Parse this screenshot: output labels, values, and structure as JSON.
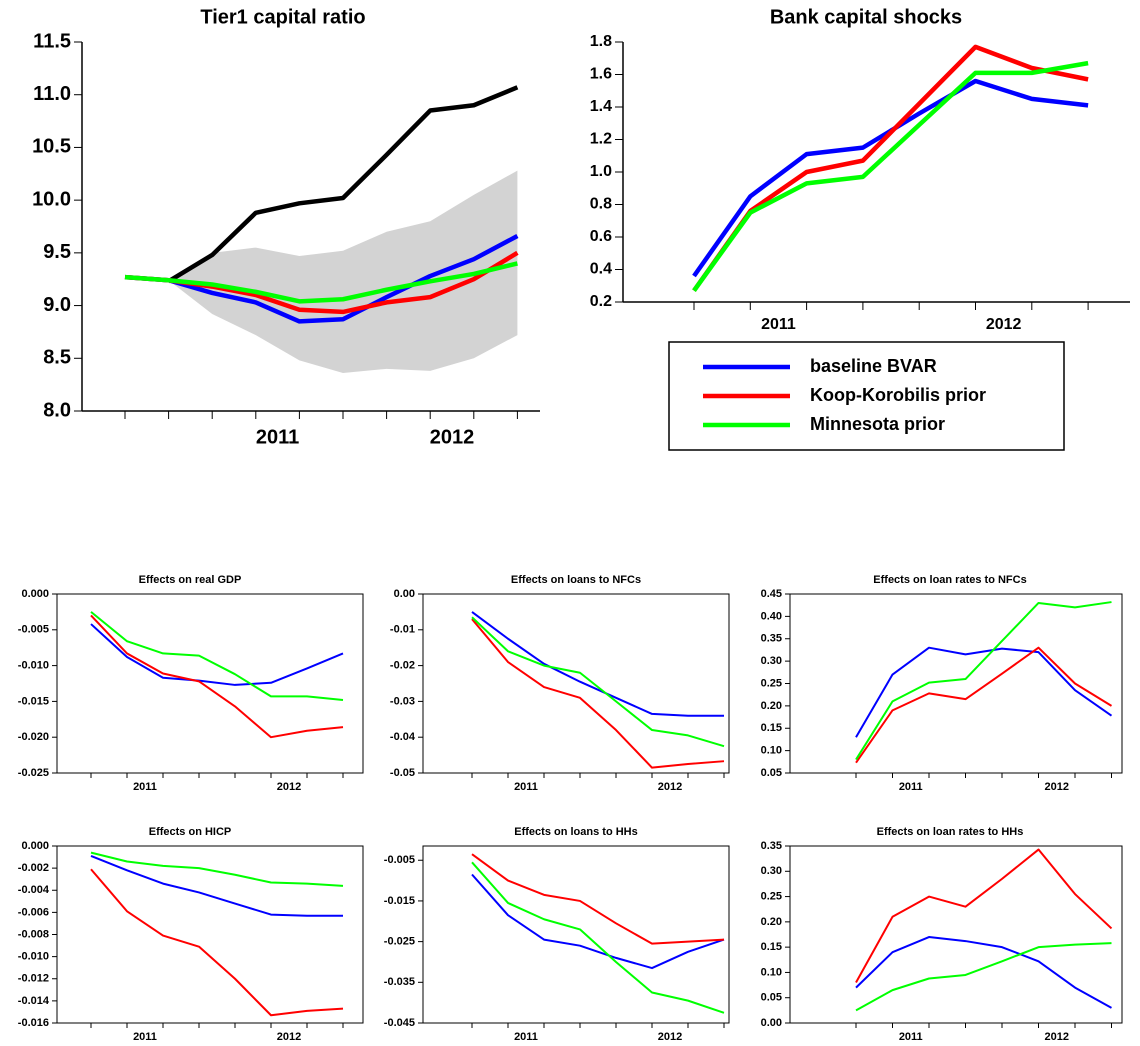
{
  "chart_data": [
    {
      "type": "line",
      "title": "Tier1 capital ratio",
      "categories": [
        null,
        null,
        null,
        "2011",
        null,
        null,
        null,
        "2012",
        null,
        null
      ],
      "band": {
        "color": "#d3d3d3",
        "upper": [
          null,
          9.25,
          9.5,
          9.55,
          9.47,
          9.52,
          9.7,
          9.8,
          10.05,
          10.28
        ],
        "lower": [
          null,
          9.24,
          8.92,
          8.72,
          8.48,
          8.36,
          8.4,
          8.38,
          8.5,
          8.72
        ]
      },
      "series": [
        {
          "color": "#000000",
          "values": [
            null,
            9.23,
            9.48,
            9.88,
            9.97,
            10.02,
            10.43,
            10.85,
            10.9,
            11.07
          ]
        },
        {
          "color": "#0000ff",
          "values": [
            9.27,
            9.24,
            9.12,
            9.03,
            8.85,
            8.87,
            9.08,
            9.28,
            9.44,
            9.66
          ]
        },
        {
          "color": "#ff0000",
          "values": [
            9.27,
            9.24,
            9.18,
            9.1,
            8.96,
            8.94,
            9.03,
            9.08,
            9.25,
            9.5
          ]
        },
        {
          "color": "#00ff00",
          "values": [
            9.27,
            9.24,
            9.2,
            9.13,
            9.04,
            9.06,
            9.15,
            9.23,
            9.3,
            9.4
          ]
        }
      ],
      "ylim": [
        8,
        11.5
      ],
      "yticks": [
        {
          "value": 8,
          "label": "8.0"
        },
        8.5,
        {
          "value": 9,
          "label": "9.0"
        },
        9.5,
        {
          "value": 10,
          "label": "10.0"
        },
        10.5,
        {
          "value": 11,
          "label": "11.0"
        },
        11.5
      ]
    },
    {
      "type": "line",
      "title": "Bank capital shocks",
      "categories": [
        null,
        "2011",
        null,
        null,
        null,
        "2012",
        null,
        null
      ],
      "series": [
        {
          "name": "baseline BVAR",
          "color": "#0000ff",
          "values": [
            0.36,
            0.85,
            1.11,
            1.15,
            1.36,
            1.56,
            1.45,
            1.41
          ]
        },
        {
          "name": "Koop-Korobilis prior",
          "color": "#ff0000",
          "values": [
            0.27,
            0.76,
            1.0,
            1.07,
            1.42,
            1.77,
            1.64,
            1.57
          ]
        },
        {
          "name": "Minnesota prior",
          "color": "#00ff00",
          "values": [
            0.27,
            0.75,
            0.93,
            0.97,
            1.29,
            1.61,
            1.61,
            1.67
          ]
        }
      ],
      "ylim": [
        0.2,
        1.8
      ],
      "yticks": [
        0.2,
        0.4,
        0.6,
        0.8,
        {
          "value": 1,
          "label": "1.0"
        },
        1.2,
        1.4,
        1.6,
        1.8
      ],
      "legend": "below"
    },
    {
      "type": "line",
      "title": "Effects on real GDP",
      "categories": [
        null,
        "2011",
        null,
        null,
        null,
        "2012",
        null,
        null
      ],
      "series": [
        {
          "color": "#0000ff",
          "values": [
            -0.0042,
            -0.0088,
            -0.0117,
            -0.0121,
            -0.0127,
            -0.0124,
            -0.0104,
            -0.0083
          ]
        },
        {
          "color": "#ff0000",
          "values": [
            -0.003,
            -0.0083,
            -0.0111,
            -0.0122,
            -0.0157,
            -0.02,
            -0.0191,
            -0.0186
          ]
        },
        {
          "color": "#00ff00",
          "values": [
            -0.0025,
            -0.0066,
            -0.0083,
            -0.0086,
            -0.0112,
            -0.0143,
            -0.0143,
            -0.0148
          ]
        }
      ],
      "ylim": [
        -0.025,
        0
      ],
      "yticks": [
        {
          "value": 0,
          "label": "0.000"
        },
        -0.005,
        {
          "value": -0.01,
          "label": "-0.010"
        },
        -0.015,
        {
          "value": -0.02,
          "label": "-0.020"
        },
        -0.025
      ]
    },
    {
      "type": "line",
      "title": "Effects on loans to NFCs",
      "categories": [
        null,
        "2011",
        null,
        null,
        null,
        "2012",
        null,
        null
      ],
      "series": [
        {
          "color": "#0000ff",
          "values": [
            -0.005,
            -0.0125,
            -0.0195,
            -0.0245,
            -0.029,
            -0.0335,
            -0.034,
            -0.034
          ]
        },
        {
          "color": "#ff0000",
          "values": [
            -0.007,
            -0.019,
            -0.026,
            -0.029,
            -0.038,
            -0.0485,
            -0.0475,
            -0.0467
          ]
        },
        {
          "color": "#00ff00",
          "values": [
            -0.0065,
            -0.016,
            -0.02,
            -0.022,
            -0.03,
            -0.038,
            -0.0395,
            -0.0425
          ]
        }
      ],
      "ylim": [
        -0.05,
        0
      ],
      "yticks": [
        {
          "value": 0,
          "label": "0.00"
        },
        -0.01,
        -0.02,
        -0.03,
        -0.04,
        -0.05
      ]
    },
    {
      "type": "line",
      "title": "Effects on loan rates to NFCs",
      "categories": [
        null,
        "2011",
        null,
        null,
        null,
        "2012",
        null,
        null
      ],
      "series": [
        {
          "color": "#0000ff",
          "values": [
            0.13,
            0.27,
            0.33,
            0.315,
            0.328,
            0.32,
            0.235,
            0.178
          ]
        },
        {
          "color": "#ff0000",
          "values": [
            0.073,
            0.19,
            0.228,
            0.215,
            0.272,
            0.33,
            0.25,
            0.2
          ]
        },
        {
          "color": "#00ff00",
          "values": [
            0.08,
            0.21,
            0.252,
            0.26,
            0.345,
            0.43,
            0.42,
            0.432
          ]
        }
      ],
      "ylim": [
        0.05,
        0.45
      ],
      "yticks": [
        0.05,
        {
          "value": 0.1,
          "label": "0.10"
        },
        0.15,
        {
          "value": 0.2,
          "label": "0.20"
        },
        0.25,
        {
          "value": 0.3,
          "label": "0.30"
        },
        0.35,
        {
          "value": 0.4,
          "label": "0.40"
        },
        0.45
      ]
    },
    {
      "type": "line",
      "title": "Effects on HICP",
      "categories": [
        null,
        "2011",
        null,
        null,
        null,
        "2012",
        null,
        null
      ],
      "series": [
        {
          "color": "#0000ff",
          "values": [
            -0.0009,
            -0.0022,
            -0.0034,
            -0.0042,
            -0.0052,
            -0.0062,
            -0.0063,
            -0.0063
          ]
        },
        {
          "color": "#ff0000",
          "values": [
            -0.0021,
            -0.0059,
            -0.0081,
            -0.0091,
            -0.012,
            -0.0153,
            -0.0149,
            -0.0147
          ]
        },
        {
          "color": "#00ff00",
          "values": [
            -0.0006,
            -0.0014,
            -0.0018,
            -0.002,
            -0.0026,
            -0.0033,
            -0.0034,
            -0.0036
          ]
        }
      ],
      "ylim": [
        -0.016,
        0
      ],
      "yticks": [
        {
          "value": 0,
          "label": "0.000"
        },
        -0.002,
        -0.004,
        -0.006,
        -0.008,
        {
          "value": -0.01,
          "label": "-0.010"
        },
        -0.012,
        -0.014,
        -0.016
      ]
    },
    {
      "type": "line",
      "title": "Effects on loans to HHs",
      "categories": [
        null,
        "2011",
        null,
        null,
        null,
        "2012",
        null,
        null
      ],
      "series": [
        {
          "color": "#0000ff",
          "values": [
            -0.0085,
            -0.0185,
            -0.0245,
            -0.026,
            -0.029,
            -0.0315,
            -0.0275,
            -0.0245
          ]
        },
        {
          "color": "#ff0000",
          "values": [
            -0.0035,
            -0.01,
            -0.0135,
            -0.015,
            -0.0205,
            -0.0255,
            -0.025,
            -0.0245
          ]
        },
        {
          "color": "#00ff00",
          "values": [
            -0.0055,
            -0.0155,
            -0.0195,
            -0.022,
            -0.03,
            -0.0375,
            -0.0395,
            -0.0425
          ]
        }
      ],
      "ylim": [
        -0.045,
        -0.0015
      ],
      "yticks": [
        -0.005,
        -0.015,
        -0.025,
        -0.035,
        -0.045
      ]
    },
    {
      "type": "line",
      "title": "Effects on loan rates to HHs",
      "categories": [
        null,
        "2011",
        null,
        null,
        null,
        "2012",
        null,
        null
      ],
      "series": [
        {
          "color": "#0000ff",
          "values": [
            0.07,
            0.14,
            0.17,
            0.162,
            0.15,
            0.122,
            0.07,
            0.03
          ]
        },
        {
          "color": "#ff0000",
          "values": [
            0.08,
            0.21,
            0.25,
            0.23,
            0.285,
            0.343,
            0.255,
            0.187
          ]
        },
        {
          "color": "#00ff00",
          "values": [
            0.025,
            0.065,
            0.088,
            0.095,
            0.122,
            0.15,
            0.155,
            0.158
          ]
        }
      ],
      "ylim": [
        0,
        0.35
      ],
      "yticks": [
        {
          "value": 0,
          "label": "0.00"
        },
        0.05,
        {
          "value": 0.1,
          "label": "0.10"
        },
        0.15,
        {
          "value": 0.2,
          "label": "0.20"
        },
        0.25,
        {
          "value": 0.3,
          "label": "0.30"
        },
        0.35
      ]
    }
  ]
}
